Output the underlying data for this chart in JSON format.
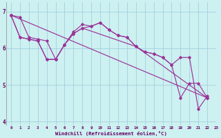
{
  "xlabel": "Windchill (Refroidissement éolien,°C)",
  "background_color": "#cdf0f0",
  "line_color": "#993399",
  "xlim": [
    -0.5,
    23
  ],
  "ylim": [
    3.9,
    7.25
  ],
  "yticks": [
    4,
    5,
    6,
    7
  ],
  "xticks": [
    0,
    1,
    2,
    3,
    4,
    5,
    6,
    7,
    8,
    9,
    10,
    11,
    12,
    13,
    14,
    15,
    16,
    17,
    18,
    19,
    20,
    21,
    22,
    23
  ],
  "line1_x": [
    0,
    1,
    2,
    3,
    4,
    5,
    6,
    7,
    8,
    9,
    10,
    11,
    12,
    13,
    14,
    15,
    16,
    17,
    18,
    19,
    20,
    21,
    22
  ],
  "line1_y": [
    6.9,
    6.85,
    6.3,
    6.25,
    6.2,
    5.7,
    6.1,
    6.45,
    6.65,
    6.6,
    6.7,
    6.5,
    6.35,
    6.3,
    6.05,
    5.9,
    5.85,
    5.75,
    5.55,
    5.75,
    5.75,
    4.35,
    4.7
  ],
  "line2_x": [
    0,
    1,
    2,
    3,
    4,
    5,
    6,
    7,
    8,
    14,
    22
  ],
  "line2_y": [
    6.9,
    6.3,
    6.25,
    6.2,
    5.7,
    5.7,
    6.1,
    6.4,
    6.55,
    6.05,
    4.65
  ],
  "line3_x": [
    0,
    22
  ],
  "line3_y": [
    6.9,
    4.65
  ],
  "line4_x": [
    0,
    1,
    2,
    3,
    4,
    5,
    6,
    7,
    8,
    9,
    10,
    11,
    12,
    13,
    14,
    15,
    16,
    17,
    18,
    19,
    20,
    21,
    22
  ],
  "line4_y": [
    6.9,
    6.3,
    6.25,
    6.2,
    5.7,
    5.7,
    6.1,
    6.4,
    6.55,
    6.6,
    6.7,
    6.5,
    6.35,
    6.3,
    6.05,
    5.9,
    5.85,
    5.75,
    5.55,
    4.65,
    5.05,
    5.05,
    4.65
  ]
}
